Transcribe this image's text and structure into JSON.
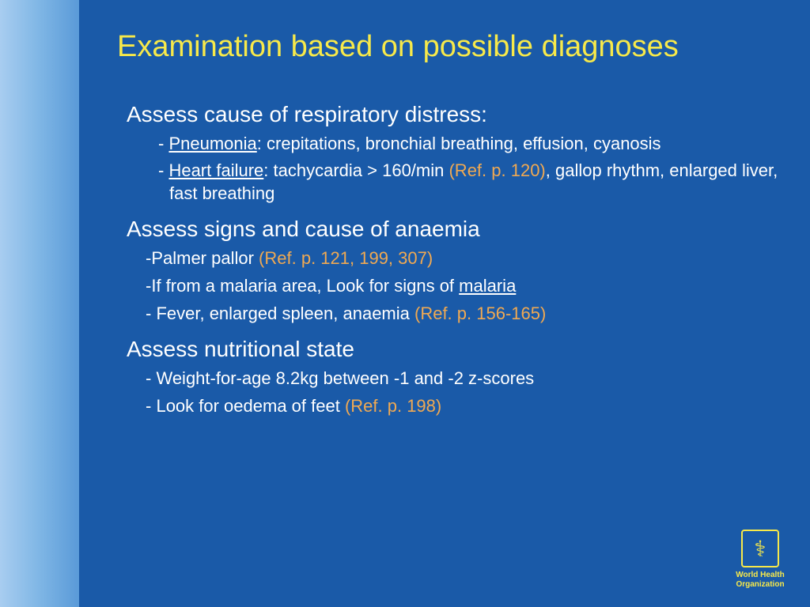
{
  "slide": {
    "title": "Examination based on possible diagnoses",
    "title_color": "#f7e94a",
    "background_color": "#1a5aa8",
    "sidebar_gradient": [
      "#a8cdf0",
      "#5a9ad8"
    ],
    "accent_bar_color": "#e08a2c",
    "text_color": "#ffffff",
    "ref_color": "#f0a952",
    "title_fontsize": 38,
    "heading_fontsize": 28,
    "bullet_fontsize": 22
  },
  "sections": [
    {
      "heading": "Assess cause of respiratory distress:",
      "bullets": [
        {
          "prefix": "- ",
          "underline": "Pneumonia",
          "after_underline": ": crepitations, bronchial breathing, effusion, cyanosis"
        },
        {
          "prefix": "- ",
          "underline": "Heart failure",
          "after_underline": ": tachycardia > 160/min ",
          "ref": "(Ref. p. 120)",
          "tail": ", gallop rhythm, enlarged liver, fast breathing"
        }
      ]
    },
    {
      "heading": "Assess signs and cause of anaemia",
      "bullets": [
        {
          "raw_prefix": "-Palmer pallor ",
          "ref": "(Ref. p. 121, 199, 307)"
        },
        {
          "raw_prefix": "-If from a malaria area, Look for signs of ",
          "underline_tail": "malaria"
        },
        {
          "prefix": "-  ",
          "plain": "Fever, enlarged spleen, anaemia ",
          "ref": "(Ref. p. 156-165)"
        }
      ]
    },
    {
      "heading": "Assess nutritional state",
      "bullets": [
        {
          "prefix": "- ",
          "plain": "Weight-for-age 8.2kg between -1 and -2 z-scores"
        },
        {
          "prefix": "- ",
          "plain": "Look for oedema of feet ",
          "ref": "(Ref. p. 198)"
        }
      ]
    }
  ],
  "logo": {
    "org_line1": "World Health",
    "org_line2": "Organization",
    "icon_glyph": "⚕",
    "color": "#f7e94a"
  }
}
